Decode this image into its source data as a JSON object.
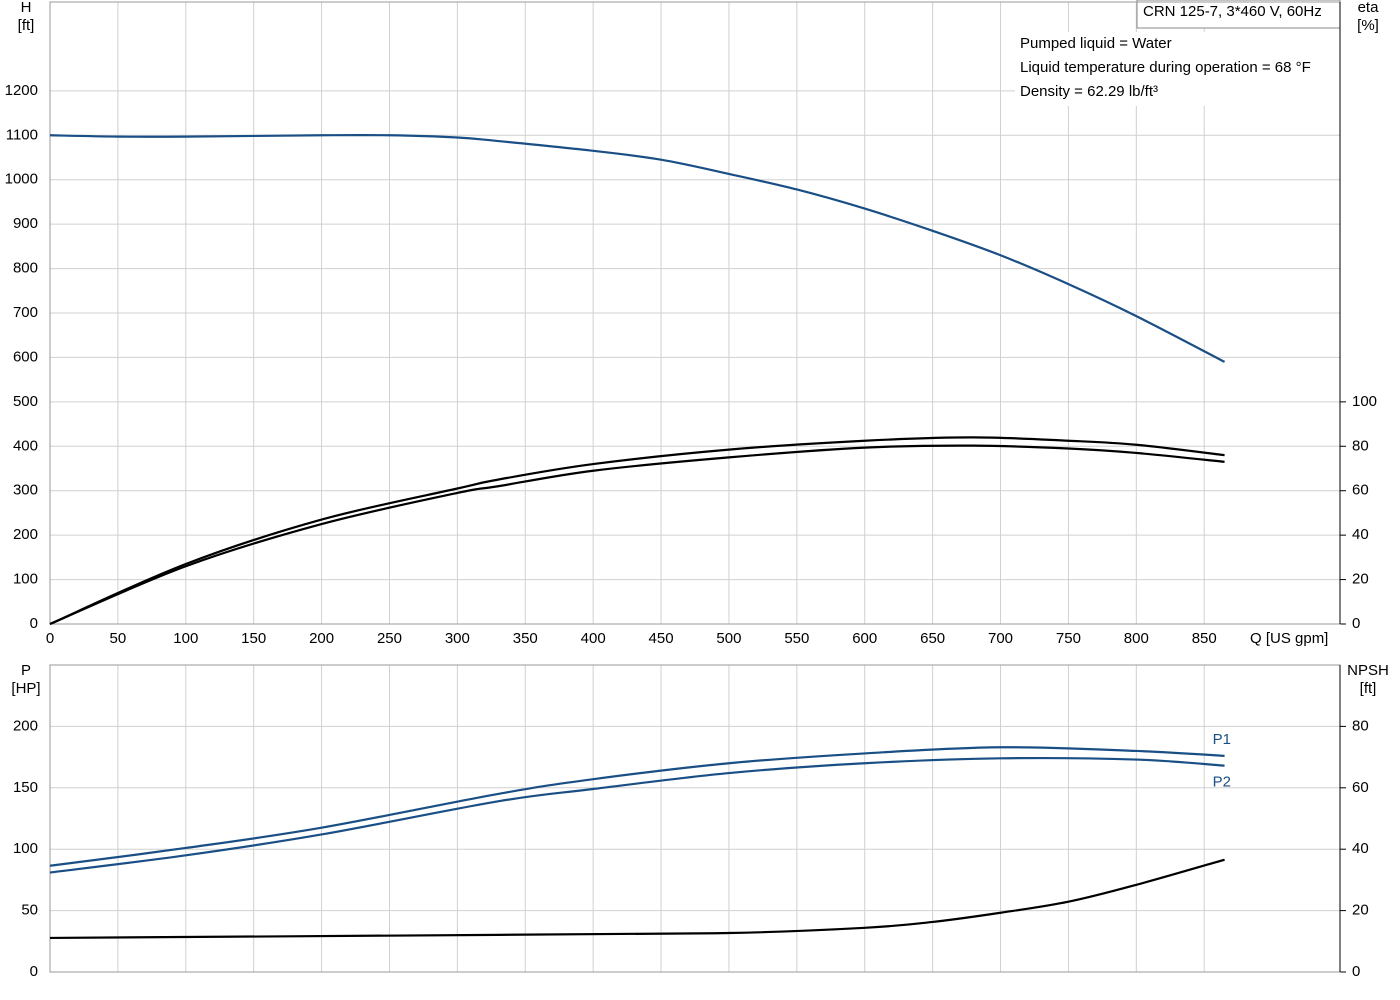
{
  "chart_data": [
    {
      "type": "line",
      "ylabel": [
        "H",
        "[ft]"
      ],
      "y2label": [
        "eta",
        "[%]"
      ],
      "xlabel": "Q [US gpm]",
      "info_box": {
        "title": "CRN 125-7, 3*460 V, 60Hz",
        "lines": [
          "Pumped liquid = Water",
          "Liquid temperature during operation = 68 °F",
          "Density = 62.29 lb/ft³"
        ]
      },
      "xlim": [
        0,
        950
      ],
      "xticks": [
        0,
        50,
        100,
        150,
        200,
        250,
        300,
        350,
        400,
        450,
        500,
        550,
        600,
        650,
        700,
        750,
        800,
        850
      ],
      "ylim": [
        0,
        1400
      ],
      "yticks": [
        0,
        100,
        200,
        300,
        400,
        500,
        600,
        700,
        800,
        900,
        1000,
        1100,
        1200
      ],
      "y2lim": [
        0,
        280
      ],
      "y2ticks": [
        0,
        20,
        40,
        60,
        80,
        100
      ],
      "grid": true,
      "series": [
        {
          "color": "#1a4f85",
          "axis": "y",
          "x": [
            0,
            50,
            100,
            200,
            250,
            300,
            330,
            400,
            450,
            500,
            550,
            600,
            650,
            700,
            750,
            800,
            865
          ],
          "values": [
            1100,
            1097,
            1097,
            1100,
            1100,
            1095,
            1087,
            1065,
            1045,
            1013,
            978,
            935,
            885,
            830,
            765,
            693,
            590
          ]
        },
        {
          "color": "#000000",
          "axis": "y2",
          "x": [
            0,
            100,
            200,
            300,
            330,
            400,
            500,
            600,
            680,
            750,
            800,
            865
          ],
          "values": [
            0,
            27,
            47,
            61,
            65,
            72,
            78.5,
            82.5,
            84,
            82.5,
            80.7,
            76
          ]
        },
        {
          "color": "#000000",
          "axis": "y2",
          "x": [
            0,
            100,
            200,
            300,
            330,
            400,
            500,
            600,
            680,
            750,
            800,
            865
          ],
          "values": [
            0,
            26,
            45,
            59,
            62,
            69,
            75,
            79.4,
            80.3,
            79,
            77,
            73
          ]
        }
      ]
    },
    {
      "type": "line",
      "ylabel": [
        "P",
        "[HP]"
      ],
      "y2label": [
        "NPSH",
        "[ft]"
      ],
      "xlim": [
        0,
        950
      ],
      "xticks": [
        0,
        50,
        100,
        150,
        200,
        250,
        300,
        350,
        400,
        450,
        500,
        550,
        600,
        650,
        700,
        750,
        800,
        850
      ],
      "ylim": [
        0,
        250
      ],
      "yticks": [
        0,
        50,
        100,
        150,
        200
      ],
      "y2lim": [
        0,
        100
      ],
      "y2ticks": [
        0,
        20,
        40,
        60,
        80
      ],
      "grid": true,
      "series": [
        {
          "name": "P1",
          "color": "#1a4f85",
          "axis": "y",
          "x": [
            0,
            100,
            200,
            330,
            400,
            500,
            600,
            700,
            800,
            865
          ],
          "values": [
            86.5,
            101,
            117.5,
            145,
            157,
            170,
            178,
            183,
            180,
            176
          ]
        },
        {
          "name": "P2",
          "color": "#1a4f85",
          "axis": "y",
          "x": [
            0,
            100,
            200,
            330,
            400,
            500,
            600,
            700,
            800,
            865
          ],
          "values": [
            81,
            95,
            112,
            139,
            149,
            162,
            170,
            174,
            173,
            168
          ]
        },
        {
          "color": "#000000",
          "axis": "y2",
          "x": [
            0,
            330,
            500,
            600,
            650,
            700,
            750,
            800,
            865
          ],
          "values": [
            11.1,
            12.1,
            12.7,
            14.4,
            16.3,
            19.3,
            22.9,
            28.4,
            36.6
          ]
        }
      ]
    }
  ]
}
